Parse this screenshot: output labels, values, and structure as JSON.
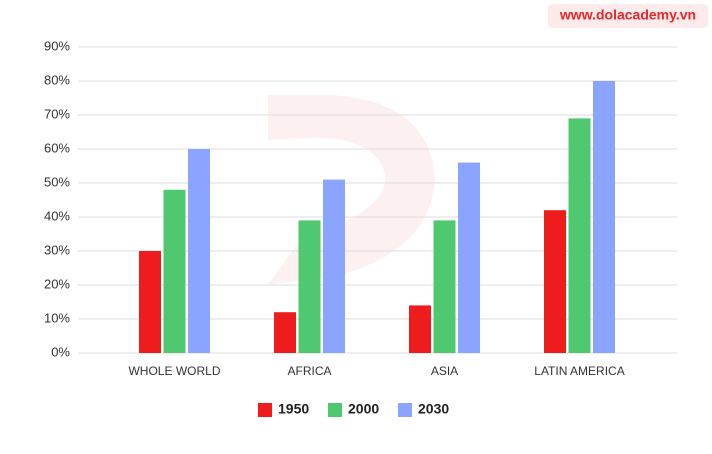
{
  "watermark": "www.dolacademy.vn",
  "chart_data": {
    "type": "bar",
    "categories": [
      "WHOLE WORLD",
      "AFRICA",
      "ASIA",
      "LATIN AMERICA"
    ],
    "series": [
      {
        "name": "1950",
        "color": "#ee1c1c",
        "values": [
          30,
          12,
          14,
          42
        ]
      },
      {
        "name": "2000",
        "color": "#4fc86f",
        "values": [
          48,
          39,
          39,
          69
        ]
      },
      {
        "name": "2030",
        "color": "#8aa4ff",
        "values": [
          60,
          51,
          56,
          80
        ]
      }
    ],
    "ylim": [
      0,
      90
    ],
    "yticks": [
      {
        "value": 0,
        "label": "0%"
      },
      {
        "value": 10,
        "label": "10%"
      },
      {
        "value": 20,
        "label": "20%"
      },
      {
        "value": 30,
        "label": "30%"
      },
      {
        "value": 40,
        "label": "40%"
      },
      {
        "value": 50,
        "label": "50%"
      },
      {
        "value": 60,
        "label": "60%"
      },
      {
        "value": 70,
        "label": "70%"
      },
      {
        "value": 80,
        "label": "80%"
      },
      {
        "value": 90,
        "label": "90%"
      }
    ],
    "grid": true,
    "legend": "bottom"
  }
}
